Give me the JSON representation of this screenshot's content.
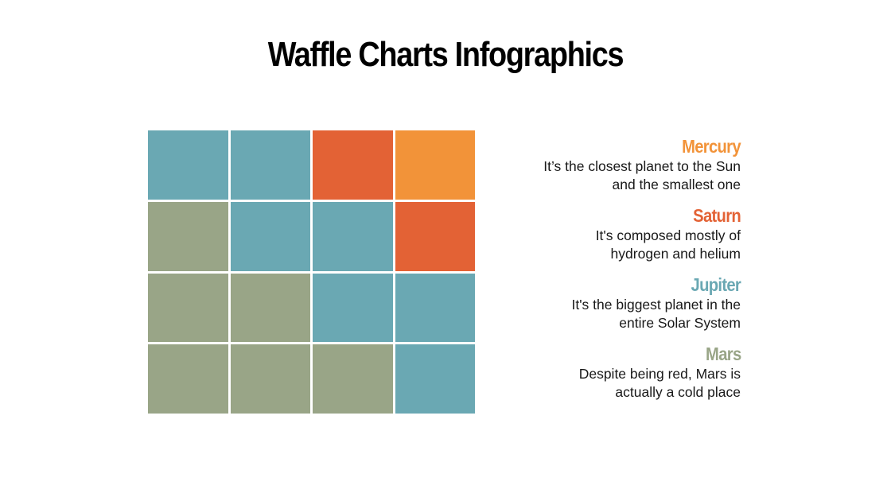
{
  "title": "Waffle Charts Infographics",
  "colors": {
    "mercury": "#f29339",
    "saturn": "#e36235",
    "jupiter": "#6aa8b3",
    "mars": "#99a587"
  },
  "legend": [
    {
      "name": "Mercury",
      "color": "#f29339",
      "description_line1": "It’s the closest planet to the Sun",
      "description_line2": "and the smallest one"
    },
    {
      "name": "Saturn",
      "color": "#e36235",
      "description_line1": "It's composed mostly of",
      "description_line2": "hydrogen and helium"
    },
    {
      "name": "Jupiter",
      "color": "#6aa8b3",
      "description_line1": "It's the biggest planet in the",
      "description_line2": "entire Solar System"
    },
    {
      "name": "Mars",
      "color": "#99a587",
      "description_line1": "Despite being red, Mars is",
      "description_line2": "actually a cold place"
    }
  ],
  "chart_data": {
    "type": "waffle",
    "title": "Waffle Charts Infographics",
    "grid": {
      "rows": 4,
      "cols": 4
    },
    "categories": [
      "Mercury",
      "Saturn",
      "Jupiter",
      "Mars"
    ],
    "values": [
      1,
      2,
      7,
      6
    ],
    "total": 16,
    "legend_position": "right",
    "cells": [
      [
        "Jupiter",
        "Jupiter",
        "Saturn",
        "Mercury"
      ],
      [
        "Mars",
        "Jupiter",
        "Jupiter",
        "Saturn"
      ],
      [
        "Mars",
        "Mars",
        "Jupiter",
        "Jupiter"
      ],
      [
        "Mars",
        "Mars",
        "Mars",
        "Jupiter"
      ]
    ]
  }
}
